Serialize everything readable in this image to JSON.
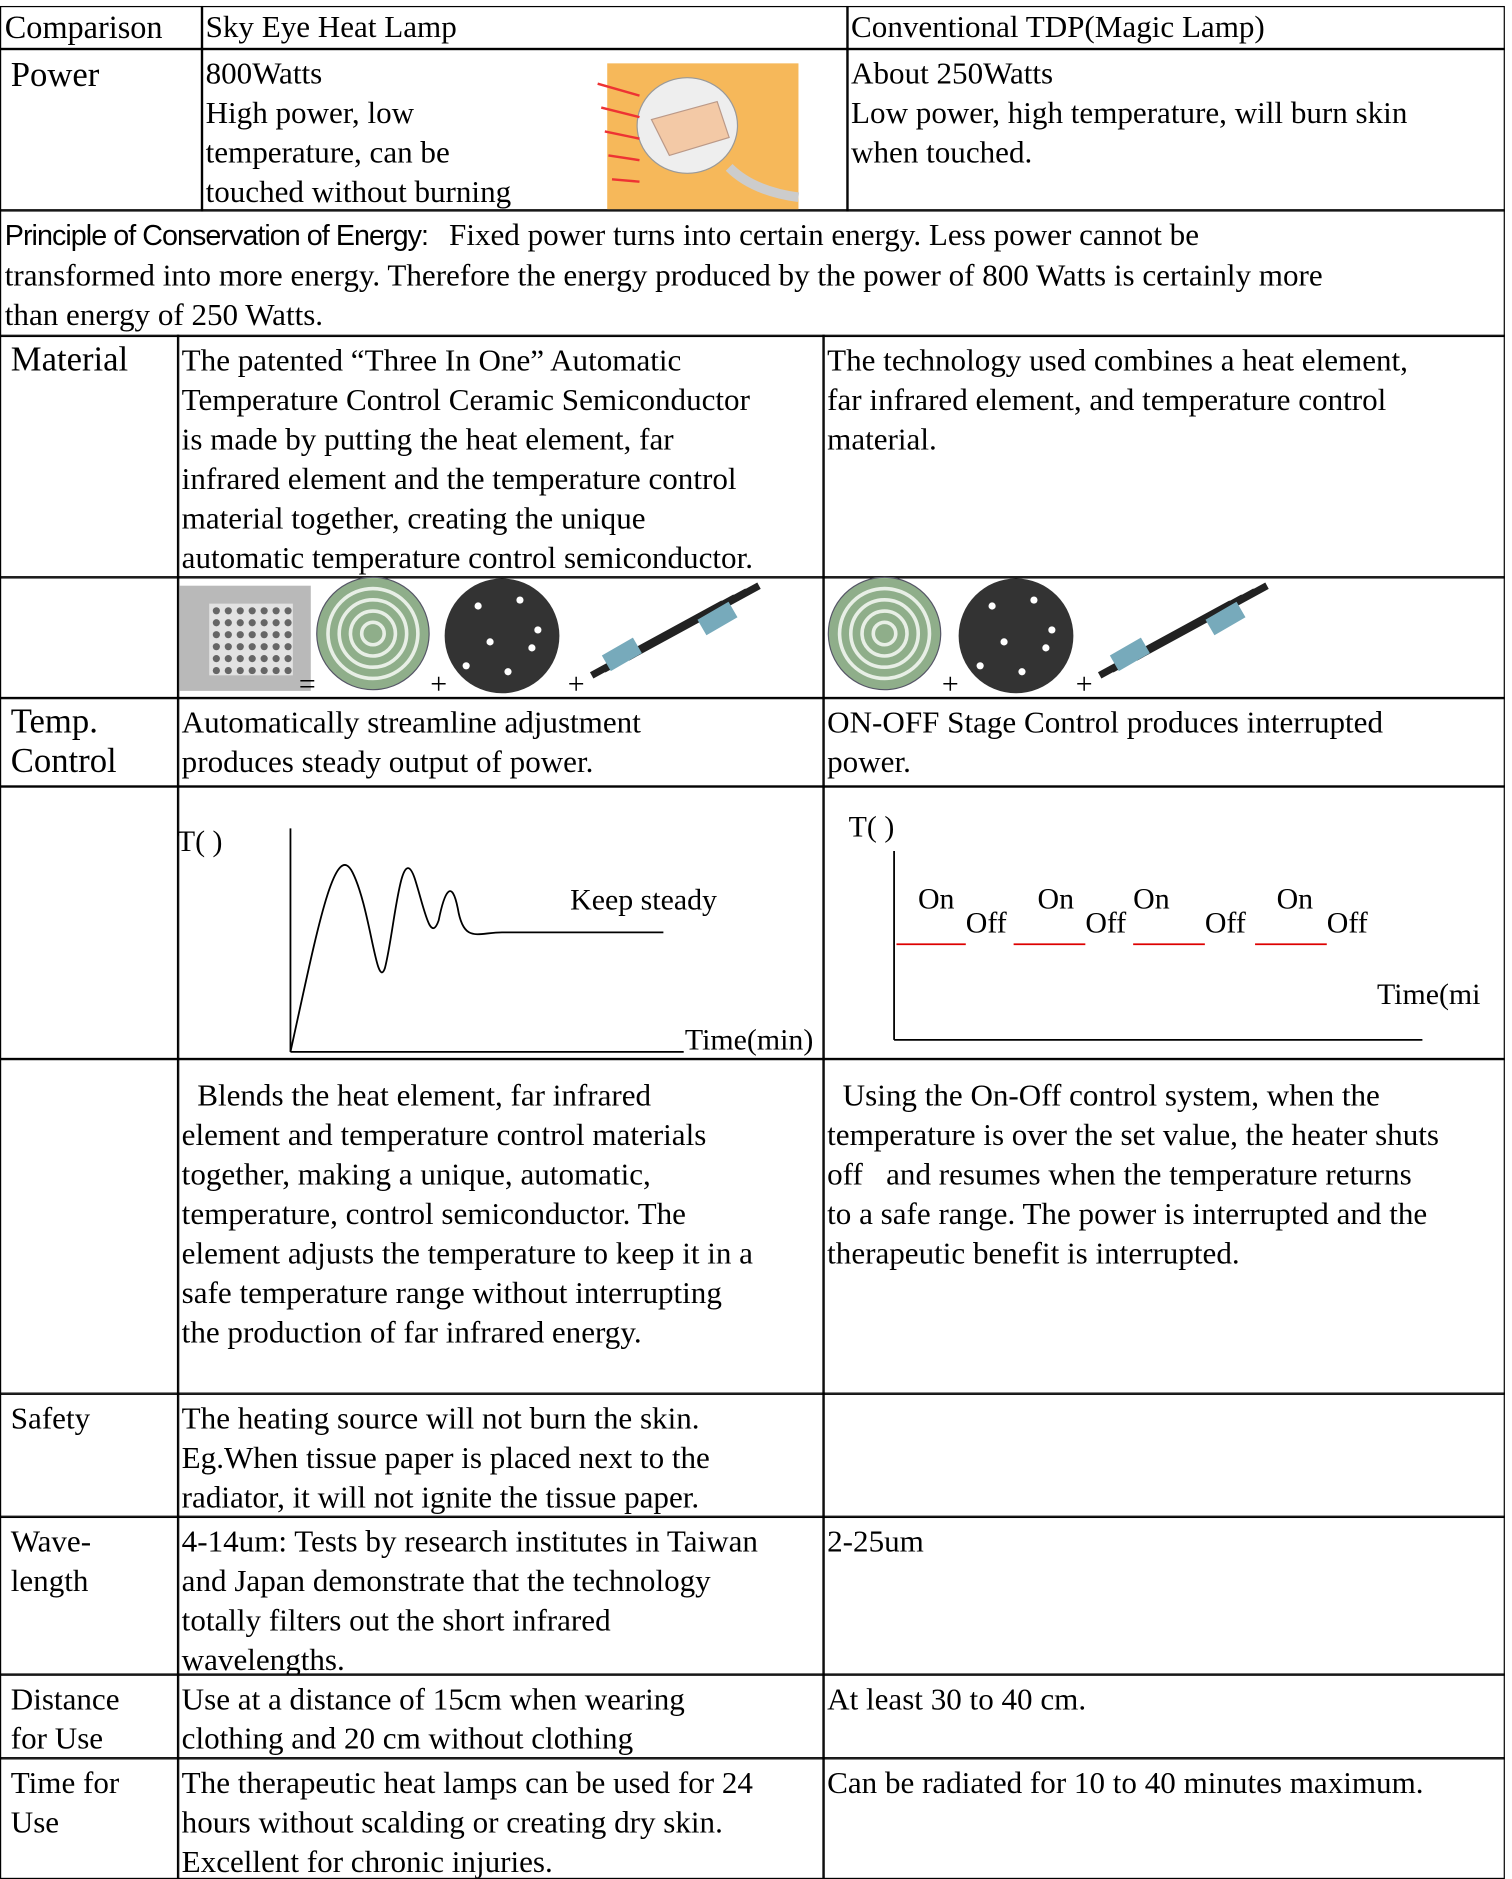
{
  "header": {
    "comparison": "Comparison",
    "sky_eye": "Sky Eye Heat Lamp",
    "conventional": "Conventional TDP(Magic Lamp)"
  },
  "power": {
    "label": [
      "Power"
    ],
    "sky_eye": [
      "800Watts",
      "High power, low",
      "temperature, can be",
      "touched without burning"
    ],
    "conventional": [
      "About 250Watts",
      "Low power, high temperature, will burn skin",
      "when touched."
    ]
  },
  "principle": {
    "heading": "Principle of Conservation of Energy:",
    "lines": [
      "Fixed power turns into certain energy. Less power cannot be",
      "transformed into more energy. Therefore the energy produced by the power of 800 Watts is certainly more",
      "than energy of 250 Watts."
    ]
  },
  "material": {
    "label": [
      "Material"
    ],
    "sky_eye": [
      "The patented “Three In One” Automatic",
      "Temperature Control Ceramic Semiconductor",
      "is made by putting the heat element, far",
      "infrared element and the temperature control",
      "material together, creating the unique",
      "automatic temperature control semiconductor."
    ],
    "conventional": [
      "The technology used combines a heat element,",
      "far infrared element, and temperature control",
      "material."
    ]
  },
  "components": {
    "sky_eye_signs": [
      "=",
      "+",
      "+"
    ],
    "conventional_signs": [
      "+",
      "+"
    ]
  },
  "temp_control": {
    "label": [
      "Temp.",
      "Control"
    ],
    "sky_eye": [
      "Automatically streamline adjustment",
      "produces steady output of power."
    ],
    "conventional": [
      "ON-OFF Stage Control produces interrupted",
      "power."
    ]
  },
  "charts": {
    "sky_eye": {
      "y_label": "T(  )",
      "annotation": "Keep steady",
      "x_label": "Time(min)"
    },
    "conventional": {
      "y_label": "T(  )",
      "on": "On",
      "off": "Off",
      "x_label": "Time(mi"
    }
  },
  "explanation": {
    "sky_eye": [
      "  Blends the heat element, far infrared",
      "element and temperature control materials",
      "together, making a unique, automatic,",
      "temperature, control semiconductor. The",
      "element adjusts the temperature to keep it in a",
      "safe temperature range without interrupting",
      "the production of far infrared energy."
    ],
    "conventional": [
      "  Using the On-Off control system, when the",
      "temperature is over the set value, the heater shuts",
      "off   and resumes when the temperature returns",
      "to a safe range. The power is interrupted and the",
      "therapeutic benefit is interrupted."
    ]
  },
  "safety": {
    "label": [
      "Safety"
    ],
    "sky_eye": [
      "The heating source will not burn the skin.",
      "Eg.When tissue paper is placed next to the",
      "radiator, it will not ignite the tissue paper."
    ]
  },
  "wavelength": {
    "label": [
      "Wave-",
      "length"
    ],
    "sky_eye": [
      "4-14um: Tests by research institutes in Taiwan",
      "and Japan demonstrate that the technology",
      "totally filters out the short infrared",
      "wavelengths."
    ],
    "conventional": [
      "2-25um"
    ]
  },
  "distance": {
    "label": [
      "Distance",
      "for Use"
    ],
    "sky_eye": [
      "Use at a distance of 15cm when wearing",
      "clothing and 20 cm without clothing"
    ],
    "conventional": [
      "At least 30 to 40 cm."
    ]
  },
  "time": {
    "label": [
      "Time for",
      "Use"
    ],
    "sky_eye": [
      "The therapeutic heat lamps can be used for 24",
      "hours without scalding or creating dry skin.",
      "Excellent for chronic injuries."
    ],
    "conventional": [
      "Can be radiated for 10 to 40 minutes maximum."
    ]
  }
}
